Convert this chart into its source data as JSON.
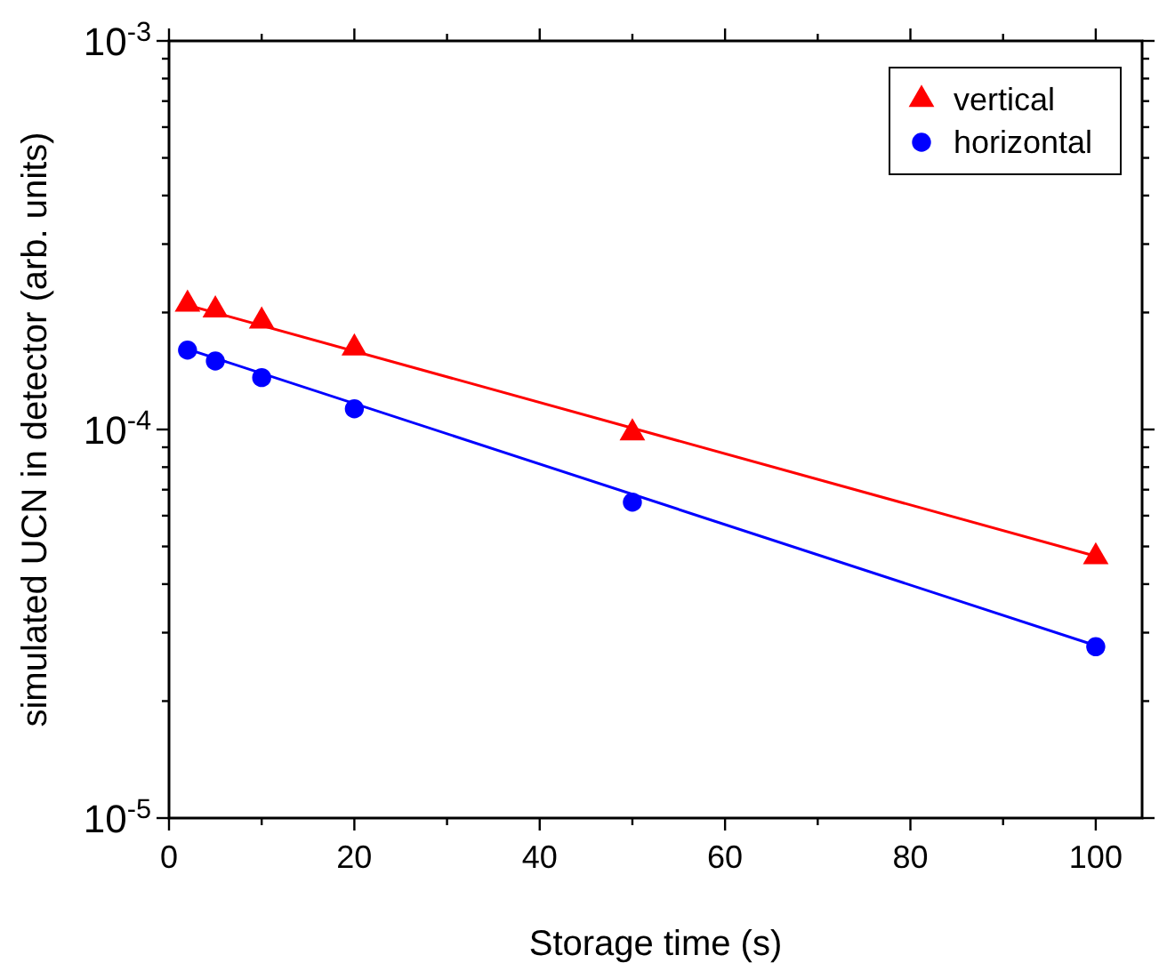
{
  "chart_data": {
    "type": "scatter",
    "xlabel": "Storage time (s)",
    "ylabel": "simulated UCN in detector (arb. units)",
    "log": "y",
    "legend": "top right",
    "grid": false,
    "xlim": [
      0,
      105
    ],
    "ylim": [
      1e-05,
      0.001
    ],
    "xticks": [
      0,
      {
        "value": 10,
        "label": null
      },
      20,
      {
        "value": 30,
        "label": null
      },
      40,
      {
        "value": 50,
        "label": null
      },
      60,
      {
        "value": 70,
        "label": null
      },
      80,
      {
        "value": 90,
        "label": null
      },
      100
    ],
    "yticks": [
      {
        "value": 1e-05,
        "label": "10$^{-5}$"
      },
      {
        "value": 2e-05,
        "label": null
      },
      {
        "value": 3e-05,
        "label": null
      },
      {
        "value": 4e-05,
        "label": null
      },
      {
        "value": 5e-05,
        "label": null
      },
      {
        "value": 6e-05,
        "label": null
      },
      {
        "value": 7e-05,
        "label": null
      },
      {
        "value": 8e-05,
        "label": null
      },
      {
        "value": 9e-05,
        "label": null
      },
      {
        "value": 0.0001,
        "label": "10$^{-4}$"
      },
      {
        "value": 0.0002,
        "label": null
      },
      {
        "value": 0.0003,
        "label": null
      },
      {
        "value": 0.0004,
        "label": null
      },
      {
        "value": 0.0005,
        "label": null
      },
      {
        "value": 0.0006,
        "label": null
      },
      {
        "value": 0.0007,
        "label": null
      },
      {
        "value": 0.0008,
        "label": null
      },
      {
        "value": 0.0009,
        "label": null
      },
      {
        "value": 0.001,
        "label": "10$^{-3}$"
      }
    ],
    "series": [
      {
        "name": "vertical",
        "marker": "triangle",
        "color": "#ff0000",
        "x": [
          2,
          5,
          10,
          20,
          50,
          100
        ],
        "values": [
          0.00021,
          0.000203,
          0.00019,
          0.000162,
          9.8e-05,
          4.7e-05
        ]
      },
      {
        "name": "horizontal",
        "marker": "circle",
        "color": "#0000ff",
        "x": [
          2,
          5,
          10,
          20,
          50,
          100
        ],
        "values": [
          0.00016,
          0.00015,
          0.000136,
          0.000113,
          6.5e-05,
          2.76e-05
        ]
      },
      {
        "type": "line",
        "marker": "none",
        "color": "#ff0000",
        "x": [
          2,
          100
        ],
        "values": [
          0.000209,
          4.72e-05
        ]
      },
      {
        "type": "line",
        "marker": "none",
        "color": "#0000ff",
        "x": [
          2,
          100
        ],
        "values": [
          0.000161,
          2.78e-05
        ]
      }
    ]
  }
}
